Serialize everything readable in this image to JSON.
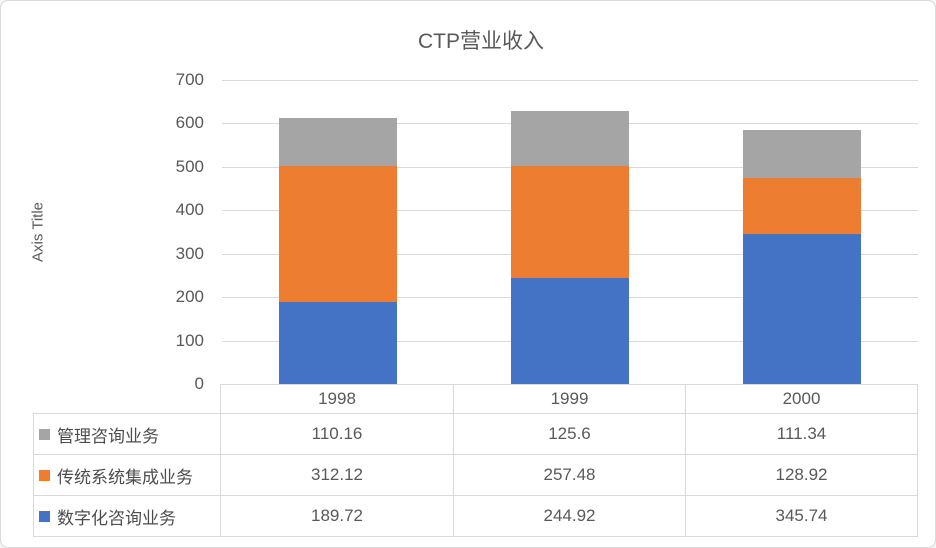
{
  "window": {
    "background": "#ffffff",
    "border_color": "#d9d9d9"
  },
  "chart_data": {
    "type": "bar",
    "stacked": true,
    "title": "CTP营业收入",
    "ylabel": "Axis Title",
    "xlabel": "",
    "categories": [
      "1998",
      "1999",
      "2000"
    ],
    "series": [
      {
        "name": "数字化咨询业务",
        "color": "#4472C4",
        "values": [
          189.72,
          244.92,
          345.74
        ]
      },
      {
        "name": "传统系统集成业务",
        "color": "#ED7D31",
        "values": [
          312.12,
          257.48,
          128.92
        ]
      },
      {
        "name": "管理咨询业务",
        "color": "#A5A5A5",
        "values": [
          110.16,
          125.6,
          111.34
        ]
      }
    ],
    "table_row_order_top_to_bottom": [
      "管理咨询业务",
      "传统系统集成业务",
      "数字化咨询业务"
    ],
    "ylim": [
      0,
      700
    ],
    "ytick_step": 100,
    "yticks": [
      0,
      100,
      200,
      300,
      400,
      500,
      600,
      700
    ],
    "grid": true,
    "legend_position": "data-table-left-column",
    "colors": {
      "text": "#595959",
      "gridline": "#d9d9d9",
      "table_border": "#d9d9d9"
    }
  }
}
